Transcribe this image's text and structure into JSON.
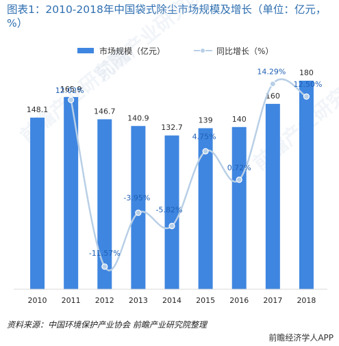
{
  "title": "图表1：2010-2018年中国袋式除尘市场规模及增长（单位：亿元，%）",
  "source": "资料来源：中国环境保护产业协会 前瞻产业研究院整理",
  "brand": "前瞻经济学人APP",
  "watermarks": [
    "前瞻产业研究院",
    "前瞻产业研究院",
    "前瞻产业研究院"
  ],
  "colors": {
    "bar": "#3f86e0",
    "line": "#b8cfe6",
    "marker_fill": "#b8cfe6",
    "title": "#2f6fb0"
  },
  "chart_data": {
    "type": "bar",
    "categories": [
      "2010",
      "2011",
      "2012",
      "2013",
      "2014",
      "2015",
      "2016",
      "2017",
      "2018"
    ],
    "series": [
      {
        "name": "市场规模（亿元）",
        "type": "bar",
        "values": [
          148.1,
          165.9,
          146.7,
          140.9,
          132.7,
          139,
          140,
          160,
          180
        ],
        "labels": [
          "148.1",
          "165.9",
          "146.7",
          "140.9",
          "132.7",
          "139",
          "140",
          "160",
          "180"
        ]
      },
      {
        "name": "同比增长（%）",
        "type": "line",
        "axis": "secondary",
        "values": [
          null,
          12.02,
          -11.57,
          -3.95,
          -5.82,
          4.75,
          0.72,
          14.29,
          12.5
        ],
        "labels": [
          "",
          "12.02%",
          "-11.57%",
          "-3.95%",
          "-5.82%",
          "4.75%",
          "0.72%",
          "14.29%",
          "12.50%"
        ]
      }
    ],
    "ylim": [
      0,
      180
    ],
    "y2lim": [
      -14,
      16
    ],
    "legend_position": "top",
    "grid": false
  }
}
